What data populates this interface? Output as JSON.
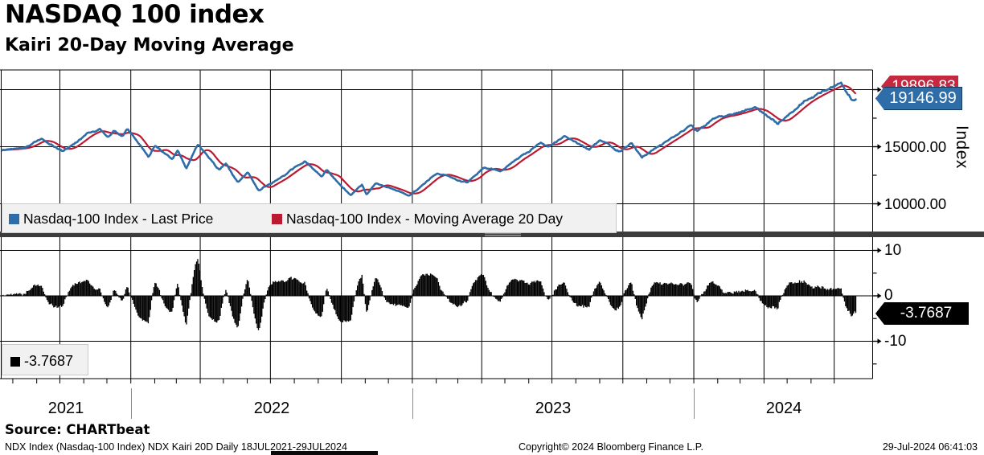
{
  "header": {
    "title": "NASDAQ 100 index",
    "subtitle": "Kairi 20-Day Moving Average"
  },
  "top_panel": {
    "y_axis_label": "Index",
    "tick_15000": "15000.00",
    "tick_10000": "10000.00",
    "badge_ma": "19896.83",
    "badge_last": "19146.99",
    "legend": [
      {
        "swatch_color": "#2e6da8",
        "label": "Nasdaq-100 Index - Last Price"
      },
      {
        "swatch_color": "#bb1a33",
        "label": "Nasdaq-100 Index - Moving Average 20 Day"
      }
    ]
  },
  "bottom_panel": {
    "tick_plus10": "10",
    "tick_zero": "0",
    "tick_minus10": "-10",
    "badge_value": "-3.7687",
    "legend_value": "-3.7687",
    "legend_swatch_color": "#000000"
  },
  "x_axis": {
    "years": [
      "2021",
      "2022",
      "2023",
      "2024"
    ]
  },
  "source": "Source: CHARTbeat",
  "footer": {
    "left": "NDX Index (Nasdaq-100 Index) NDX Kairi 20D  Daily 18JUL2021-29JUL2024",
    "center": "Copyright© 2024 Bloomberg Finance L.P.",
    "right": "29-Jul-2024 06:41:03"
  },
  "colors": {
    "price_line": "#2e6da8",
    "ma_line": "#bb1a33",
    "price_badge_bg": "#2e6da8",
    "ma_badge_bg": "#c42940",
    "kairi_badge_bg": "#000000",
    "legend_bg": "#f1f1f1",
    "grid": "#000000"
  },
  "chart_data": {
    "type": "line",
    "title": "NASDAQ 100 index",
    "subtitle": "Kairi 20-Day Moving Average",
    "x_range": [
      "2021-07-18",
      "2024-07-29"
    ],
    "x_tick_labels": [
      "2021",
      "2022",
      "2023",
      "2024"
    ],
    "panels": [
      {
        "type": "line",
        "ylabel": "Index",
        "ylim": [
          7360,
          21720
        ],
        "yticks": [
          10000,
          15000,
          20000
        ],
        "legend_position": "bottom-left-overlay",
        "grid": true,
        "series": [
          {
            "name": "Nasdaq-100 Index - Last Price",
            "color": "#2e6da8",
            "last_value": 19146.99,
            "keypoints": [
              [
                "2021-07-18",
                14670
              ],
              [
                "2021-08-16",
                15000
              ],
              [
                "2021-09-07",
                15690
              ],
              [
                "2021-10-04",
                14570
              ],
              [
                "2021-10-22",
                15360
              ],
              [
                "2021-11-05",
                16200
              ],
              [
                "2021-11-22",
                16570
              ],
              [
                "2021-12-03",
                15760
              ],
              [
                "2021-12-10",
                16330
              ],
              [
                "2021-12-20",
                15800
              ],
              [
                "2021-12-28",
                16550
              ],
              [
                "2022-01-24",
                14240
              ],
              [
                "2022-02-02",
                15190
              ],
              [
                "2022-02-24",
                13850
              ],
              [
                "2022-03-03",
                14640
              ],
              [
                "2022-03-14",
                13050
              ],
              [
                "2022-03-29",
                15240
              ],
              [
                "2022-04-26",
                13010
              ],
              [
                "2022-05-04",
                13540
              ],
              [
                "2022-05-20",
                11840
              ],
              [
                "2022-06-02",
                12750
              ],
              [
                "2022-06-16",
                11130
              ],
              [
                "2022-08-15",
                13700
              ],
              [
                "2022-09-06",
                12260
              ],
              [
                "2022-09-12",
                12930
              ],
              [
                "2022-10-13",
                10680
              ],
              [
                "2022-10-28",
                11550
              ],
              [
                "2022-11-03",
                10700
              ],
              [
                "2022-11-15",
                11850
              ],
              [
                "2022-12-28",
                10680
              ],
              [
                "2023-02-02",
                12800
              ],
              [
                "2023-03-13",
                11830
              ],
              [
                "2023-04-03",
                13200
              ],
              [
                "2023-04-25",
                12880
              ],
              [
                "2023-06-16",
                15280
              ],
              [
                "2023-06-26",
                14880
              ],
              [
                "2023-07-18",
                15930
              ],
              [
                "2023-08-18",
                14720
              ],
              [
                "2023-09-01",
                15490
              ],
              [
                "2023-09-27",
                14580
              ],
              [
                "2023-10-12",
                15280
              ],
              [
                "2023-10-26",
                14110
              ],
              [
                "2023-12-28",
                16900
              ],
              [
                "2024-01-05",
                16310
              ],
              [
                "2024-01-30",
                17550
              ],
              [
                "2024-03-08",
                18300
              ],
              [
                "2024-03-21",
                18400
              ],
              [
                "2024-04-19",
                16970
              ],
              [
                "2024-05-23",
                18950
              ],
              [
                "2024-06-18",
                19900
              ],
              [
                "2024-07-10",
                20675
              ],
              [
                "2024-07-17",
                19850
              ],
              [
                "2024-07-25",
                19050
              ],
              [
                "2024-07-29",
                19146.99
              ]
            ]
          },
          {
            "name": "Nasdaq-100 Index - Moving Average 20 Day",
            "color": "#bb1a33",
            "last_value": 19896.83,
            "derived": "20-day moving average of last price"
          }
        ]
      },
      {
        "type": "bar",
        "name": "NDX Kairi 20D",
        "color": "#000000",
        "ylim": [
          -18.2,
          12.4
        ],
        "yticks": [
          -10,
          0,
          10
        ],
        "last_value": -3.7687,
        "derived": "kairi = (price - ma20) / ma20 * 100"
      }
    ]
  }
}
